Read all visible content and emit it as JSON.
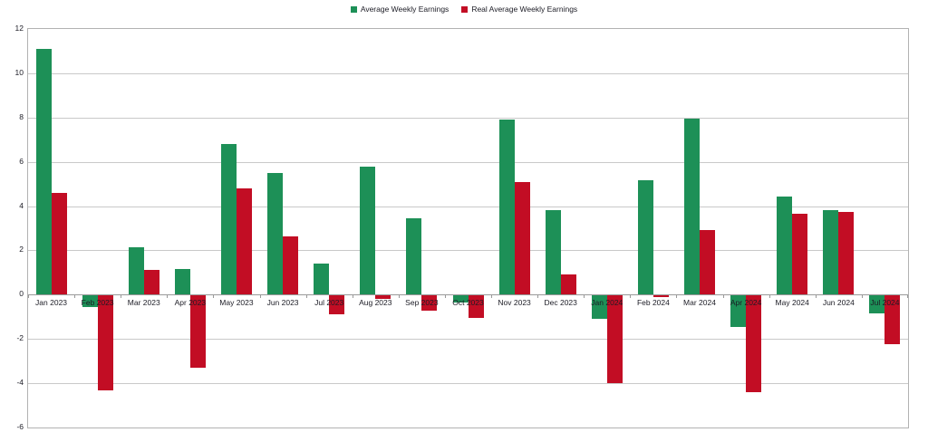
{
  "chart_data": {
    "type": "bar",
    "categories": [
      "Jan 2023",
      "Feb 2023",
      "Mar 2023",
      "Apr 2023",
      "May 2023",
      "Jun 2023",
      "Jul 2023",
      "Aug 2023",
      "Sep 2023",
      "Oct 2023",
      "Nov 2023",
      "Dec 2023",
      "Jan 2024",
      "Feb 2024",
      "Mar 2024",
      "Apr 2024",
      "May 2024",
      "Jun 2024",
      "Jul 2024"
    ],
    "series": [
      {
        "name": "Average Weekly Earnings",
        "color": "#1d9057",
        "values": [
          11.1,
          -0.5,
          2.15,
          1.15,
          6.8,
          5.5,
          1.4,
          5.8,
          3.45,
          -0.3,
          7.9,
          3.8,
          -1.05,
          5.15,
          7.95,
          -1.4,
          4.45,
          3.8,
          -0.8
        ]
      },
      {
        "name": "Real Average Weekly Earnings",
        "color": "#c20d24",
        "values": [
          4.6,
          -4.3,
          1.1,
          -3.25,
          4.8,
          2.65,
          -0.85,
          -0.15,
          -0.7,
          -1.0,
          5.1,
          0.9,
          -3.95,
          -0.05,
          2.9,
          -4.35,
          3.65,
          3.75,
          -2.2
        ]
      }
    ],
    "ylim": [
      -6,
      12
    ],
    "yticks": [
      12,
      10,
      8,
      6,
      4,
      2,
      0,
      -2,
      -4,
      -6
    ],
    "grid": true,
    "legend_position": "top"
  },
  "colors": {
    "gridline": "#c9c9c9",
    "plot_border": "#b2b2b2",
    "zero_axis": "#9a9a9a",
    "label_text": "#1b1b24",
    "background": "#ffffff"
  }
}
